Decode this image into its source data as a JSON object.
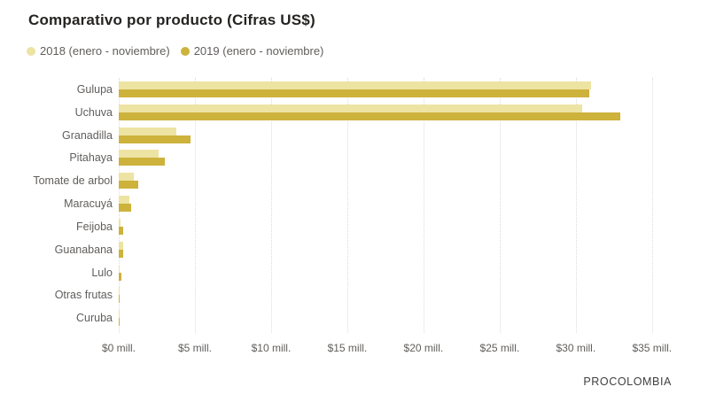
{
  "header": {
    "title": "Comparativo por producto (Cifras US$)"
  },
  "legend": [
    {
      "label": "2018 (enero - noviembre)",
      "color": "#EDE3A3"
    },
    {
      "label": "2019 (enero - noviembre)",
      "color": "#CDB23C"
    }
  ],
  "footer": {
    "brand": "PROCOLOMBIA"
  },
  "colors": {
    "series_2018": "#EDE3A3",
    "series_2019": "#CDB23C",
    "title_text": "#252423",
    "axis_text": "#605E5C",
    "gridline": "#DCDCDC",
    "background": "#FFFFFF"
  },
  "chart_data": {
    "type": "bar",
    "orientation": "horizontal",
    "title": "Comparativo por producto (Cifras US$)",
    "units": "millions USD",
    "categories": [
      "Gulupa",
      "Uchuva",
      "Granadilla",
      "Pitahaya",
      "Tomate de arbol",
      "Maracuyá",
      "Feijoba",
      "Guanabana",
      "Lulo",
      "Otras frutas",
      "Curuba"
    ],
    "series": [
      {
        "name": "2018 (enero - noviembre)",
        "color": "#EDE3A3",
        "values": [
          31.0,
          30.4,
          3.8,
          2.6,
          1.0,
          0.7,
          0.12,
          0.27,
          0.08,
          0.05,
          0.03
        ]
      },
      {
        "name": "2019 (enero - noviembre)",
        "color": "#CDB23C",
        "values": [
          30.9,
          32.9,
          4.7,
          3.0,
          1.3,
          0.8,
          0.3,
          0.31,
          0.2,
          0.08,
          0.04
        ]
      }
    ],
    "x_ticks": [
      "$0 mill.",
      "$5 mill.",
      "$10 mill.",
      "$15 mill.",
      "$20 mill.",
      "$25 mill.",
      "$30 mill.",
      "$35 mill."
    ],
    "x_tick_values": [
      0,
      5,
      10,
      15,
      20,
      25,
      30,
      35
    ],
    "xlim": [
      0,
      36
    ],
    "grid": "dotted-vertical",
    "legend_position": "top-left"
  }
}
